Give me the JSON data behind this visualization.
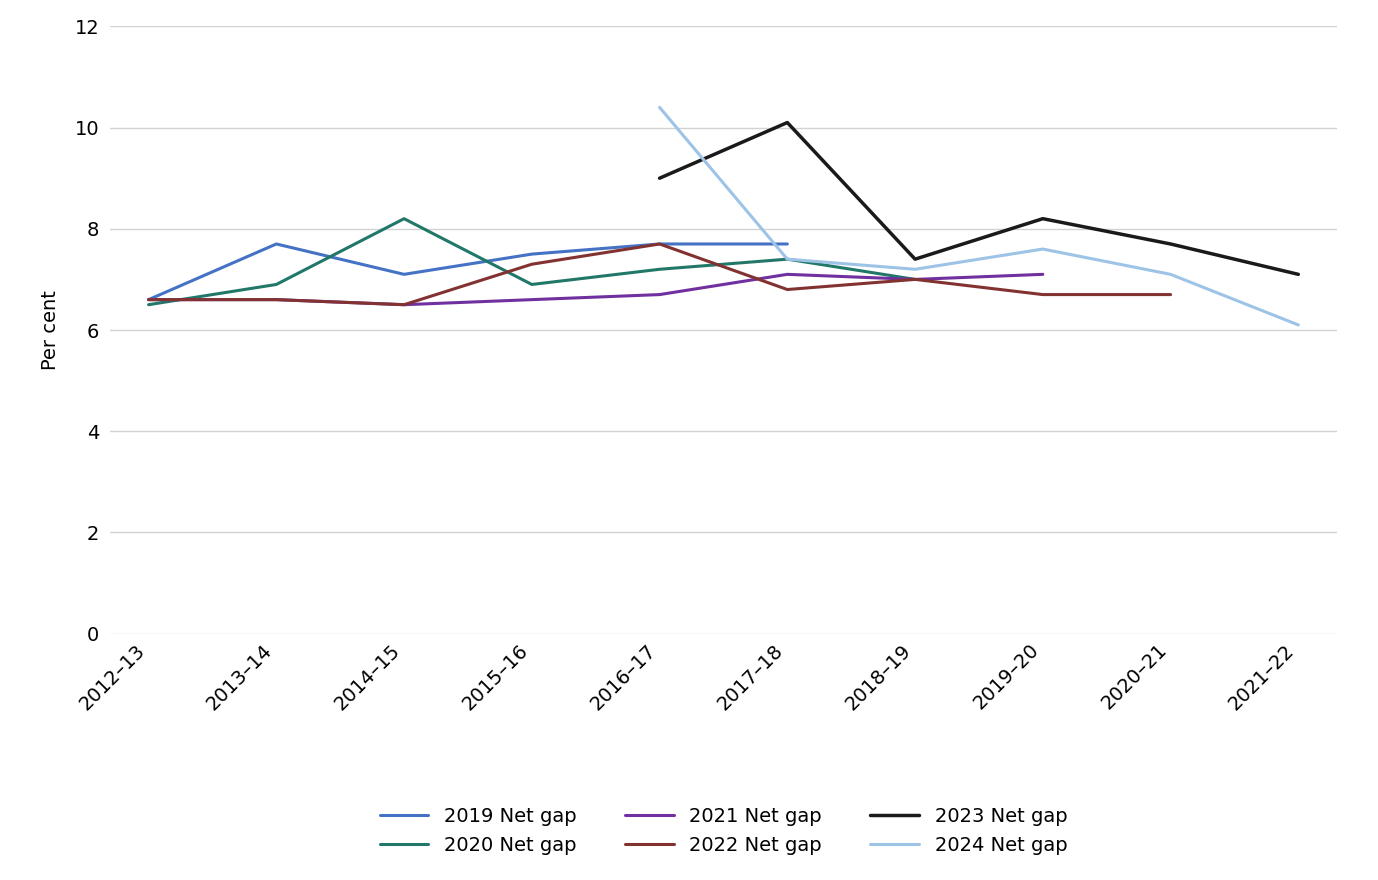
{
  "x_labels": [
    "2012–13",
    "2013–14",
    "2014–15",
    "2015–16",
    "2016–17",
    "2017–18",
    "2018–19",
    "2019–20",
    "2020–21",
    "2021–22"
  ],
  "series": {
    "2019 Net gap": {
      "x_indices": [
        0,
        1,
        2,
        3,
        4,
        5
      ],
      "values": [
        6.6,
        7.7,
        7.1,
        7.5,
        7.7,
        7.7
      ],
      "color": "#4472C4",
      "linewidth": 2.2
    },
    "2020 Net gap": {
      "x_indices": [
        0,
        1,
        2,
        3,
        4,
        5,
        6
      ],
      "values": [
        6.5,
        6.9,
        8.2,
        6.9,
        7.2,
        7.4,
        7.0
      ],
      "color": "#217868",
      "linewidth": 2.2
    },
    "2021 Net gap": {
      "x_indices": [
        0,
        1,
        2,
        3,
        4,
        5,
        6,
        7
      ],
      "values": [
        6.6,
        6.6,
        6.5,
        6.6,
        6.7,
        7.1,
        7.0,
        7.1
      ],
      "color": "#7030A0",
      "linewidth": 2.2
    },
    "2022 Net gap": {
      "x_indices": [
        0,
        1,
        2,
        3,
        4,
        5,
        6,
        7,
        8
      ],
      "values": [
        6.6,
        6.6,
        6.5,
        7.3,
        7.7,
        6.8,
        7.0,
        6.7,
        6.7
      ],
      "color": "#833232",
      "linewidth": 2.2
    },
    "2023 Net gap": {
      "x_indices": [
        4,
        5,
        6,
        7,
        8,
        9
      ],
      "values": [
        9.0,
        10.1,
        7.4,
        8.2,
        7.7,
        7.1
      ],
      "color": "#1A1A1A",
      "linewidth": 2.5
    },
    "2024 Net gap": {
      "x_indices": [
        4,
        5,
        6,
        7,
        8,
        9
      ],
      "values": [
        10.4,
        7.4,
        7.2,
        7.6,
        7.1,
        6.1
      ],
      "color": "#9DC3E6",
      "linewidth": 2.2
    }
  },
  "ylabel": "Per cent",
  "ylim": [
    0,
    12
  ],
  "yticks": [
    0,
    2,
    4,
    6,
    8,
    10,
    12
  ],
  "background_color": "#FFFFFF",
  "grid_color": "#D3D3D3",
  "legend_order": [
    "2019 Net gap",
    "2020 Net gap",
    "2021 Net gap",
    "2022 Net gap",
    "2023 Net gap",
    "2024 Net gap"
  ]
}
